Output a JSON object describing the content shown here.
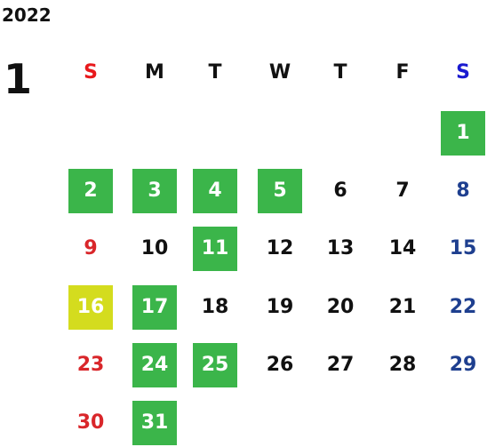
{
  "year": "2022",
  "month": "1",
  "weekdays": [
    {
      "label": "S",
      "color": "#e8191c"
    },
    {
      "label": "M",
      "color": "#111111"
    },
    {
      "label": "T",
      "color": "#111111"
    },
    {
      "label": "W",
      "color": "#111111"
    },
    {
      "label": "T",
      "color": "#111111"
    },
    {
      "label": "F",
      "color": "#111111"
    },
    {
      "label": "S",
      "color": "#1a1ad0"
    }
  ],
  "day_colors": [
    "#d9262a",
    "#111111",
    "#111111",
    "#111111",
    "#111111",
    "#111111",
    "#1e3f8f"
  ],
  "highlight_text_color": "#ffffff",
  "weeks": [
    [
      null,
      null,
      null,
      null,
      null,
      null,
      {
        "day": "1",
        "bg": "#3bb54a"
      }
    ],
    [
      {
        "day": "2",
        "bg": "#3bb54a"
      },
      {
        "day": "3",
        "bg": "#3bb54a"
      },
      {
        "day": "4",
        "bg": "#3bb54a"
      },
      {
        "day": "5",
        "bg": "#3bb54a"
      },
      {
        "day": "6"
      },
      {
        "day": "7"
      },
      {
        "day": "8"
      }
    ],
    [
      {
        "day": "9"
      },
      {
        "day": "10"
      },
      {
        "day": "11",
        "bg": "#3bb54a"
      },
      {
        "day": "12"
      },
      {
        "day": "13"
      },
      {
        "day": "14"
      },
      {
        "day": "15"
      }
    ],
    [
      {
        "day": "16",
        "bg": "#d4dc1e"
      },
      {
        "day": "17",
        "bg": "#3bb54a"
      },
      {
        "day": "18"
      },
      {
        "day": "19"
      },
      {
        "day": "20"
      },
      {
        "day": "21"
      },
      {
        "day": "22"
      }
    ],
    [
      {
        "day": "23"
      },
      {
        "day": "24",
        "bg": "#3bb54a"
      },
      {
        "day": "25",
        "bg": "#3bb54a"
      },
      {
        "day": "26"
      },
      {
        "day": "27"
      },
      {
        "day": "28"
      },
      {
        "day": "29"
      }
    ],
    [
      {
        "day": "30"
      },
      {
        "day": "31",
        "bg": "#3bb54a"
      },
      null,
      null,
      null,
      null,
      null
    ]
  ]
}
